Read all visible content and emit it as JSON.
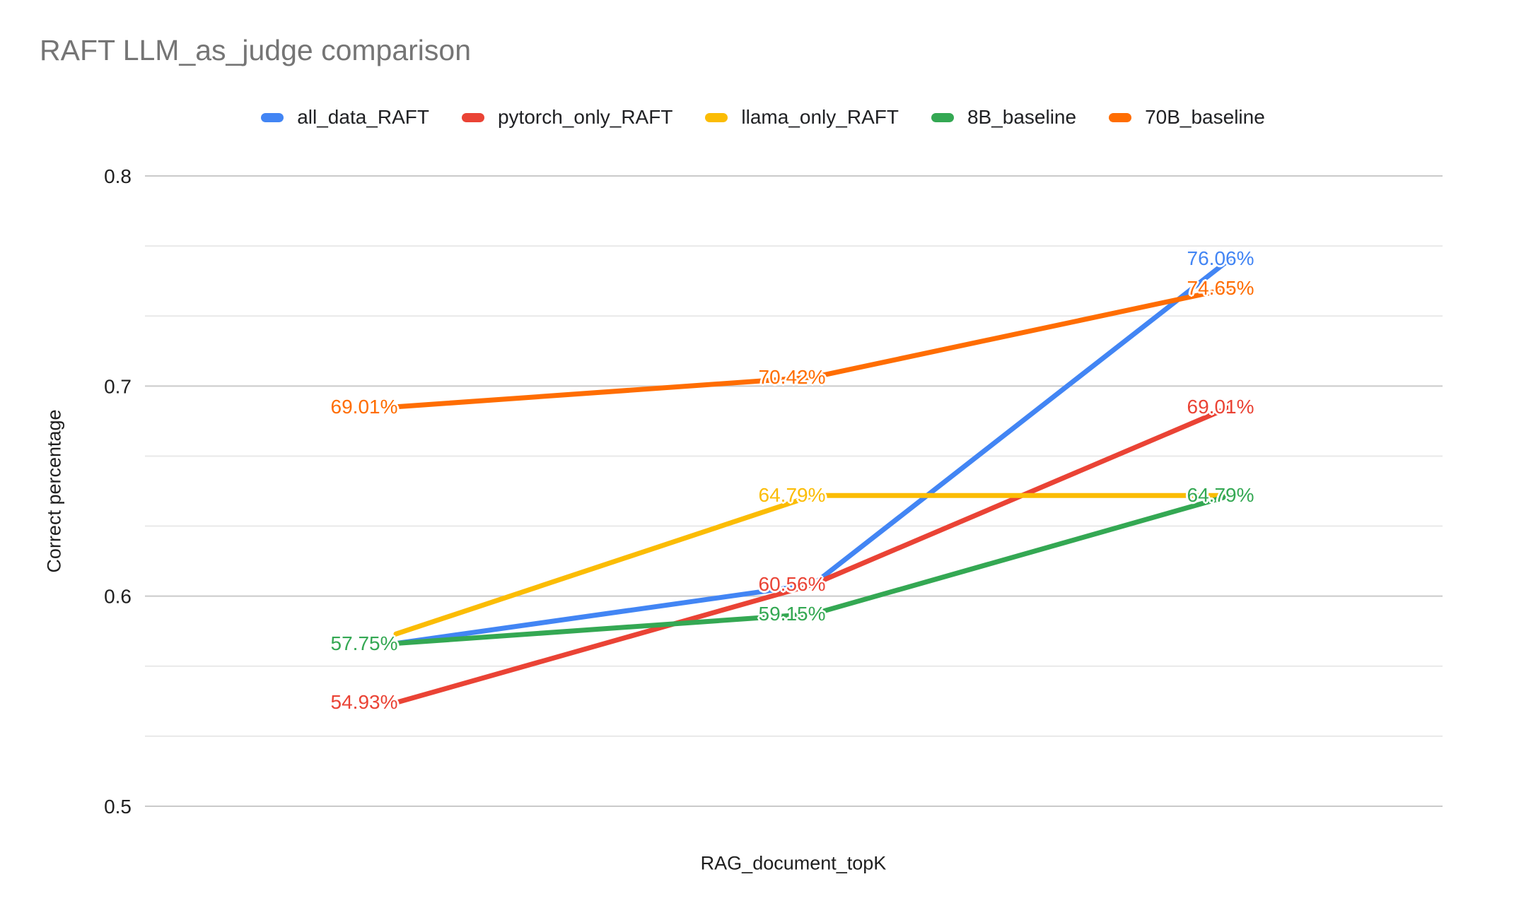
{
  "chart_data": {
    "type": "line",
    "title": "RAFT LLM_as_judge comparison",
    "xlabel": "RAG_document_topK",
    "ylabel": "Correct percentage",
    "ylim": [
      0.5,
      0.8
    ],
    "y_ticks": [
      0.8,
      0.7,
      0.6,
      0.5
    ],
    "minor_gridline_subdivisions": 3,
    "grid": true,
    "x_tick_labels_visible": false,
    "num_x_points": 3,
    "legend_position": "top",
    "colors": {
      "background": "#ffffff",
      "title_text": "#757575",
      "axis_text": "#1f1f1f",
      "legend_text": "#202124",
      "major_gridline": "#cacaca",
      "minor_gridline": "#e9e9e9"
    },
    "series": [
      {
        "name": "all_data_RAFT",
        "color": "#4285F4",
        "values_percent": [
          57.75,
          60.56,
          76.06
        ],
        "point_labels": [
          null,
          null,
          "76.06%"
        ]
      },
      {
        "name": "pytorch_only_RAFT",
        "color": "#EA4335",
        "values_percent": [
          54.93,
          60.56,
          69.01
        ],
        "point_labels": [
          "54.93%",
          "60.56%",
          "69.01%"
        ]
      },
      {
        "name": "llama_only_RAFT",
        "color": "#FBBC04",
        "values_percent": [
          58.2,
          64.79,
          64.79
        ],
        "point_labels": [
          null,
          "64.79%",
          null
        ]
      },
      {
        "name": "8B_baseline",
        "color": "#34A853",
        "values_percent": [
          57.75,
          59.15,
          64.79
        ],
        "point_labels": [
          "57.75%",
          "59.15%",
          "64.79%"
        ]
      },
      {
        "name": "70B_baseline",
        "color": "#FF6D01",
        "values_percent": [
          69.01,
          70.42,
          74.65
        ],
        "point_labels": [
          "69.01%",
          "70.42%",
          "74.65%"
        ]
      }
    ]
  }
}
